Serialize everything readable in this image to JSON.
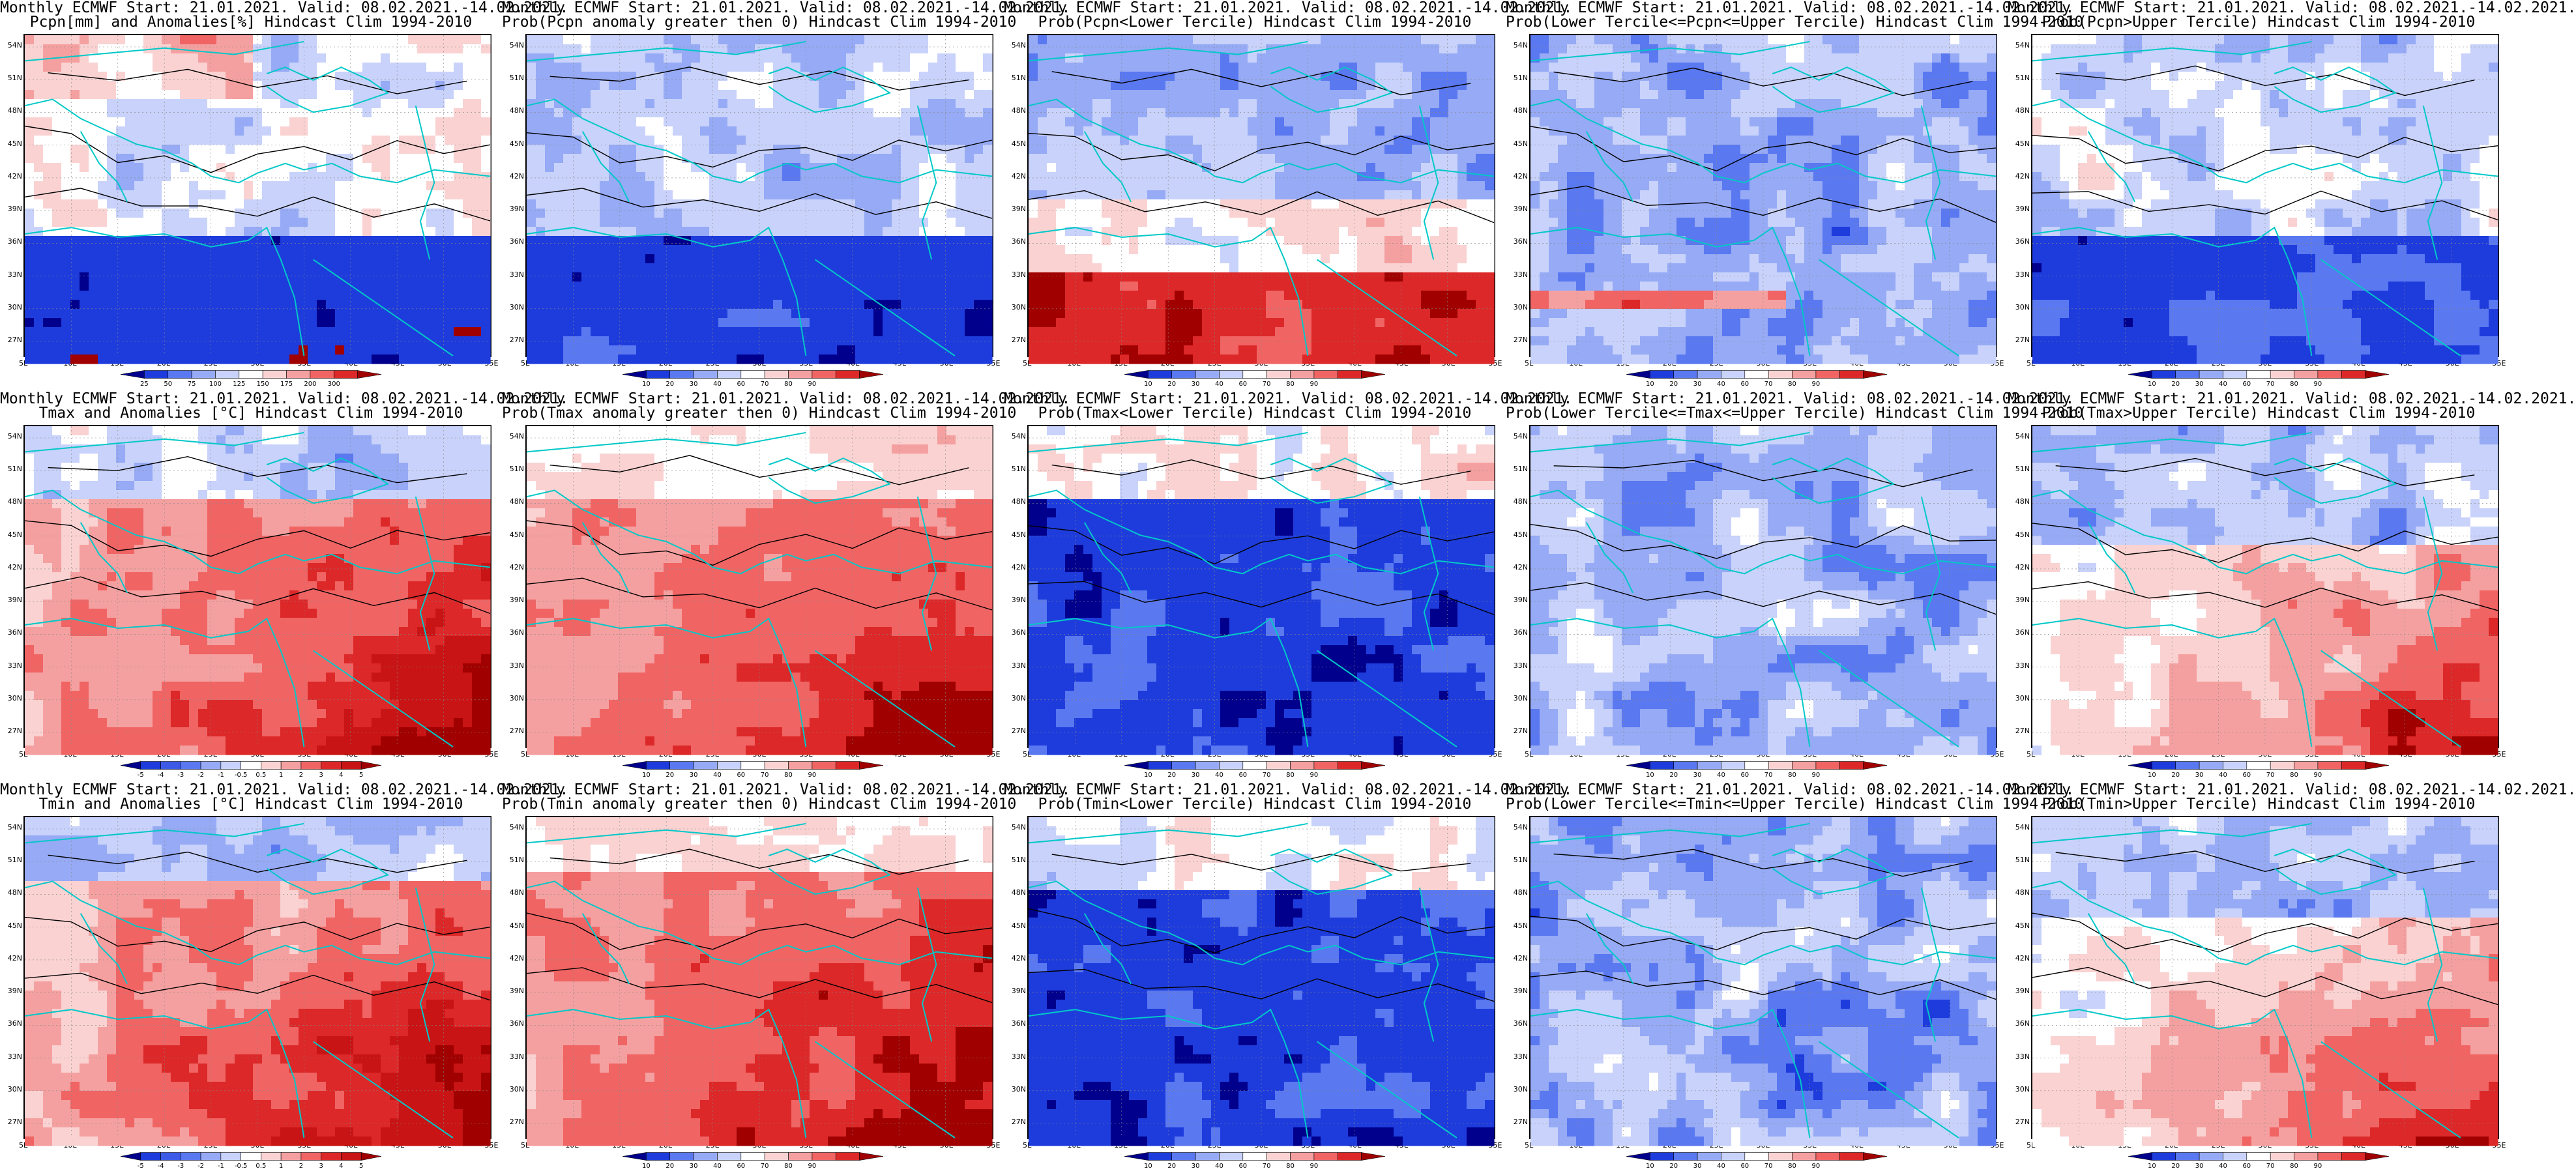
{
  "title_line1": "Monthly ECMWF Start: 21.01.2021. Valid: 08.02.2021.-14.02.2021.",
  "y_ticks": [
    "54N",
    "51N",
    "48N",
    "45N",
    "42N",
    "39N",
    "36N",
    "33N",
    "30N",
    "27N"
  ],
  "x_ticks": [
    "5E",
    "10E",
    "15E",
    "20E",
    "25E",
    "30E",
    "35E",
    "40E",
    "45E",
    "50E",
    "55E"
  ],
  "colors": {
    "coast": "#00c8c8",
    "contour": "#000000"
  },
  "colorbars": {
    "pcpn_anom": {
      "labels": [
        "25",
        "50",
        "75",
        "100",
        "125",
        "150",
        "175",
        "200",
        "300"
      ],
      "colors": [
        "#00008c",
        "#1e3cdc",
        "#5a78f0",
        "#96aaf5",
        "#c8d2fa",
        "#ffffff",
        "#fad2d2",
        "#f5a0a0",
        "#f06464",
        "#dc2828",
        "#a00000"
      ]
    },
    "prob": {
      "labels": [
        "10",
        "20",
        "30",
        "40",
        "60",
        "70",
        "80",
        "90"
      ],
      "colors": [
        "#00008c",
        "#1e3cdc",
        "#5a78f0",
        "#96aaf5",
        "#c8d2fa",
        "#ffffff",
        "#fad2d2",
        "#f5a0a0",
        "#f06464",
        "#dc2828",
        "#a00000"
      ]
    },
    "tmax_anom": {
      "labels": [
        "-5",
        "-4",
        "-3",
        "-2",
        "-1",
        "-0.5",
        "0.5",
        "1",
        "2",
        "3",
        "4",
        "5"
      ],
      "colors": [
        "#00008c",
        "#1e3cdc",
        "#3c5ae6",
        "#5a78f0",
        "#96aaf5",
        "#c8d2fa",
        "#ffffff",
        "#fad2d2",
        "#f5a0a0",
        "#f06464",
        "#dc2828",
        "#c81414",
        "#a00000"
      ]
    },
    "tmin_anom": {
      "labels": [
        "-5",
        "-4",
        "-3",
        "-2",
        "-1",
        "-0.5",
        "0.5",
        "1",
        "2",
        "3",
        "4",
        "5"
      ],
      "colors": [
        "#00008c",
        "#1e3cdc",
        "#3c5ae6",
        "#5a78f0",
        "#96aaf5",
        "#c8d2fa",
        "#ffffff",
        "#fad2d2",
        "#f5a0a0",
        "#f06464",
        "#dc2828",
        "#c81414",
        "#a00000"
      ]
    }
  },
  "panels": [
    {
      "title_line2": "Pcpn[mm] and Anomalies[%] Hindcast Clim 1994-2010",
      "cbar": "pcpn_anom",
      "pattern": "pcpn_anom"
    },
    {
      "title_line2": "Prob(Pcpn anomaly greater then 0) Hindcast Clim 1994-2010",
      "cbar": "prob",
      "pattern": "pcpn_prob_gt0"
    },
    {
      "title_line2": "Prob(Pcpn<Lower Tercile) Hindcast Clim 1994-2010",
      "cbar": "prob",
      "pattern": "pcpn_lower"
    },
    {
      "title_line2": "Prob(Lower Tercile<=Pcpn<=Upper Tercile) Hindcast Clim 1994-2010",
      "cbar": "prob",
      "pattern": "pcpn_middle"
    },
    {
      "title_line2": "Prob(Pcpn>Upper Tercile) Hindcast Clim 1994-2010",
      "cbar": "prob",
      "pattern": "pcpn_upper"
    },
    {
      "title_line2": "Tmax and Anomalies [°C] Hindcast Clim 1994-2010",
      "cbar": "tmax_anom",
      "pattern": "tmax_anom"
    },
    {
      "title_line2": "Prob(Tmax anomaly greater then 0) Hindcast Clim 1994-2010",
      "cbar": "prob",
      "pattern": "tmax_prob_gt0"
    },
    {
      "title_line2": "Prob(Tmax<Lower Tercile) Hindcast Clim 1994-2010",
      "cbar": "prob",
      "pattern": "tmax_lower"
    },
    {
      "title_line2": "Prob(Lower Tercile<=Tmax<=Upper Tercile) Hindcast Clim 1994-2010",
      "cbar": "prob",
      "pattern": "tmax_middle"
    },
    {
      "title_line2": "Prob(Tmax>Upper Tercile) Hindcast Clim 1994-2010",
      "cbar": "prob",
      "pattern": "tmax_upper"
    },
    {
      "title_line2": "Tmin and Anomalies [°C] Hindcast Clim 1994-2010",
      "cbar": "tmin_anom",
      "pattern": "tmin_anom"
    },
    {
      "title_line2": "Prob(Tmin anomaly greater then 0) Hindcast Clim 1994-2010",
      "cbar": "prob",
      "pattern": "tmin_prob_gt0"
    },
    {
      "title_line2": "Prob(Tmin<Lower Tercile) Hindcast Clim 1994-2010",
      "cbar": "prob",
      "pattern": "tmin_lower"
    },
    {
      "title_line2": "Prob(Lower Tercile<=Tmin<=Upper Tercile) Hindcast Clim 1994-2010",
      "cbar": "prob",
      "pattern": "tmin_middle"
    },
    {
      "title_line2": "Prob(Tmin>Upper Tercile) Hindcast Clim 1994-2010",
      "cbar": "prob",
      "pattern": "tmin_upper"
    }
  ]
}
